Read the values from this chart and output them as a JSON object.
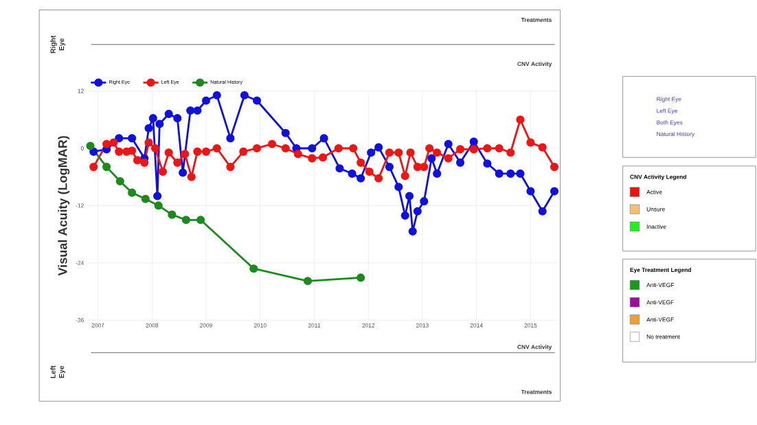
{
  "chart_data": [
    {
      "type": "line",
      "ylabel": "Visual Acuity (LogMAR)",
      "xlim": [
        2006.8,
        2015.5
      ],
      "ylim": [
        -36,
        12
      ],
      "xticks": [
        2007,
        2008,
        2009,
        2010,
        2011,
        2012,
        2013,
        2014,
        2015
      ],
      "yticks": [
        -36,
        -24,
        -12,
        0,
        12
      ],
      "grid": true,
      "legend": "top left",
      "marker": "circle",
      "series": [
        {
          "name": "Right Eye",
          "color": "#1010e0",
          "x": [
            2006.92,
            2007.16,
            2007.39,
            2007.63,
            2007.86,
            2007.94,
            2008.02,
            2008.1,
            2008.14,
            2008.31,
            2008.47,
            2008.57,
            2008.71,
            2008.84,
            2009.0,
            2009.2,
            2009.45,
            2009.71,
            2009.94,
            2010.47,
            2010.67,
            2010.96,
            2011.18,
            2011.47,
            2011.7,
            2011.86,
            2012.05,
            2012.19,
            2012.39,
            2012.56,
            2012.68,
            2012.76,
            2012.82,
            2012.91,
            2013.03,
            2013.17,
            2013.27,
            2013.48,
            2013.7,
            2013.95,
            2014.2,
            2014.42,
            2014.63,
            2014.81,
            2015.0,
            2015.22,
            2015.44
          ],
          "values": [
            -0.7,
            -0.2,
            2.1,
            2.1,
            -2.1,
            4.2,
            6.3,
            -10,
            5.1,
            7.2,
            6.3,
            -5.1,
            7.9,
            7.9,
            10,
            11.1,
            2.1,
            11.1,
            10,
            3.2,
            0,
            0,
            2.1,
            -4.2,
            -5.3,
            -6.3,
            -0.9,
            0.2,
            -3.9,
            -8.1,
            -14.1,
            -10,
            -17.4,
            -13.2,
            -11.1,
            -2.1,
            -5.3,
            0.9,
            -3,
            1.4,
            -3.2,
            -5.3,
            -5.3,
            -5.3,
            -9,
            -13.2,
            -9
          ]
        },
        {
          "name": "Left Eye",
          "color": "#ee1515",
          "x": [
            2006.92,
            2007.16,
            2007.29,
            2007.39,
            2007.53,
            2007.63,
            2007.73,
            2007.86,
            2007.94,
            2008.06,
            2008.2,
            2008.31,
            2008.47,
            2008.61,
            2008.73,
            2008.84,
            2009.0,
            2009.2,
            2009.45,
            2009.69,
            2009.94,
            2010.22,
            2010.47,
            2010.7,
            2010.96,
            2011.16,
            2011.45,
            2011.72,
            2011.86,
            2012.02,
            2012.19,
            2012.39,
            2012.56,
            2012.68,
            2012.78,
            2012.91,
            2013.03,
            2013.13,
            2013.27,
            2013.48,
            2013.7,
            2013.95,
            2014.2,
            2014.42,
            2014.63,
            2014.81,
            2015.0,
            2015.22,
            2015.44
          ],
          "values": [
            -3.9,
            0.9,
            1.2,
            -0.7,
            -0.7,
            -0.5,
            -2.5,
            -3,
            1.2,
            0,
            -4.9,
            -0.9,
            -3,
            -1.2,
            -6,
            -0.7,
            -0.7,
            0,
            -3.9,
            -0.7,
            0,
            0.9,
            0,
            -1.2,
            -2.1,
            -1.9,
            0,
            0,
            -3,
            -4.9,
            -6.3,
            -0.9,
            -0.9,
            -5.8,
            -0.9,
            -3.9,
            -3.9,
            0,
            -0.9,
            -2.1,
            -0.2,
            -0.2,
            0,
            0,
            -0.9,
            6,
            1.2,
            0.2,
            -3.9
          ]
        },
        {
          "name": "Natural History",
          "color": "#1c8a1c",
          "x": [
            2006.86,
            2007.16,
            2007.41,
            2007.63,
            2007.88,
            2008.12,
            2008.37,
            2008.63,
            2008.9,
            2009.88,
            2010.88,
            2011.86
          ],
          "values": [
            0.5,
            -3.9,
            -6.9,
            -9.3,
            -10.6,
            -12,
            -13.9,
            -15,
            -15,
            -25.2,
            -27.8,
            -27.1
          ]
        }
      ],
      "annotations": [
        "Right Eye",
        "Treatments",
        "CNV Activity",
        "CNV Activity",
        "Left Eye",
        "Treatments"
      ]
    },
    {
      "type": "other",
      "annotations": [
        "Right Eye",
        "Left Eye",
        "Both Eyes",
        "Natural History"
      ]
    },
    {
      "type": "other",
      "title": "CNV Activity Legend",
      "categories": [
        "Active",
        "Unsure",
        "Inactive"
      ],
      "colors": [
        "#ee1111",
        "#f5c070",
        "#22ee22"
      ]
    },
    {
      "type": "other",
      "title": "Eye Treatment Legend",
      "categories": [
        "Anti-VEGF",
        "Anti-VEGF",
        "Anti-VEGF",
        "No treatment"
      ],
      "colors": [
        "#1a9a1a",
        "#9a109a",
        "#eea030",
        "#ffffff"
      ]
    }
  ]
}
